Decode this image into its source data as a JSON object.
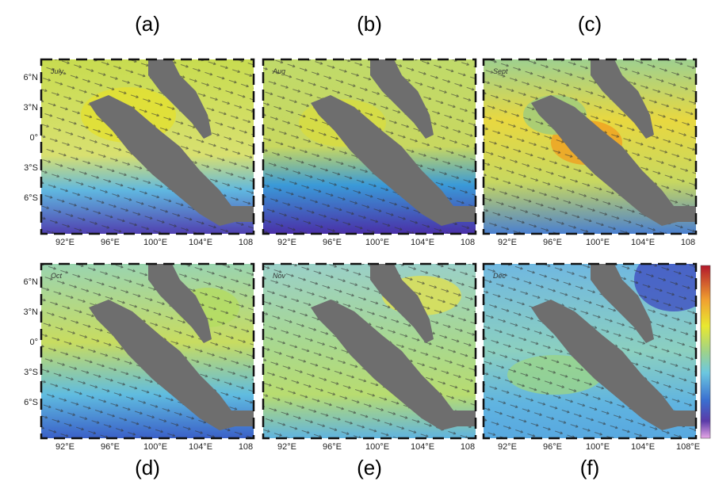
{
  "panels": [
    {
      "label": "(a)",
      "month": "July",
      "lon_ticks": [
        "92°E",
        "96°E",
        "100°E",
        "104°E",
        "108"
      ]
    },
    {
      "label": "(b)",
      "month": "Aug",
      "lon_ticks": [
        "92°E",
        "96°E",
        "100°E",
        "104°E",
        "108"
      ]
    },
    {
      "label": "(c)",
      "month": "Sept",
      "lon_ticks": [
        "92°E",
        "96°E",
        "100°E",
        "104°E",
        "108"
      ]
    },
    {
      "label": "(d)",
      "month": "Oct",
      "lon_ticks": [
        "92°E",
        "96°E",
        "100°E",
        "104°E",
        "108"
      ]
    },
    {
      "label": "(e)",
      "month": "Nov",
      "lon_ticks": [
        "92°E",
        "96°E",
        "100°E",
        "104°E",
        "108"
      ]
    },
    {
      "label": "(f)",
      "month": "Dec",
      "lon_ticks": [
        "92°E",
        "96°E",
        "100°E",
        "104°E",
        "108°E"
      ]
    }
  ],
  "lat_ticks": [
    "6°N",
    "3°N",
    "0°",
    "3°S",
    "6°S"
  ]
}
